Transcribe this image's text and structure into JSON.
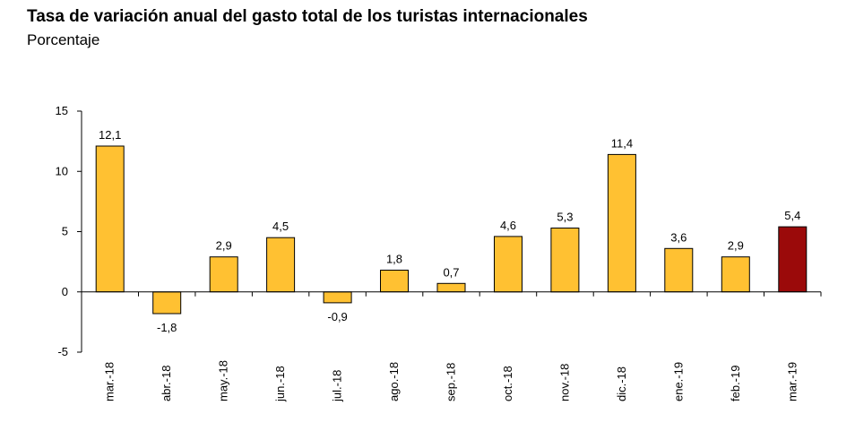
{
  "chart_data": {
    "type": "bar",
    "title": "Tasa de variación anual del gasto total de los turistas internacionales",
    "subtitle": "Porcentaje",
    "categories": [
      "mar.-18",
      "abr.-18",
      "may.-18",
      "jun.-18",
      "jul.-18",
      "ago.-18",
      "sep.-18",
      "oct.-18",
      "nov.-18",
      "dic.-18",
      "ene.-19",
      "feb.-19",
      "mar.-19"
    ],
    "values": [
      12.1,
      -1.8,
      2.9,
      4.5,
      -0.9,
      1.8,
      0.7,
      4.6,
      5.3,
      11.4,
      3.6,
      2.9,
      5.4
    ],
    "data_labels": [
      "12,1",
      "-1,8",
      "2,9",
      "4,5",
      "-0,9",
      "1,8",
      "0,7",
      "4,6",
      "5,3",
      "11,4",
      "3,6",
      "2,9",
      "5,4"
    ],
    "ylim": [
      -5,
      15
    ],
    "yticks": [
      -5,
      0,
      5,
      10,
      15
    ],
    "ytick_labels": [
      "-5",
      "0",
      "5",
      "10",
      "15"
    ],
    "xlabel": "",
    "ylabel": "",
    "grid": false,
    "colors": {
      "bar": "#FFC132",
      "highlight": "#9B0A0A",
      "outline": "#000000"
    },
    "highlight_index": 12
  }
}
